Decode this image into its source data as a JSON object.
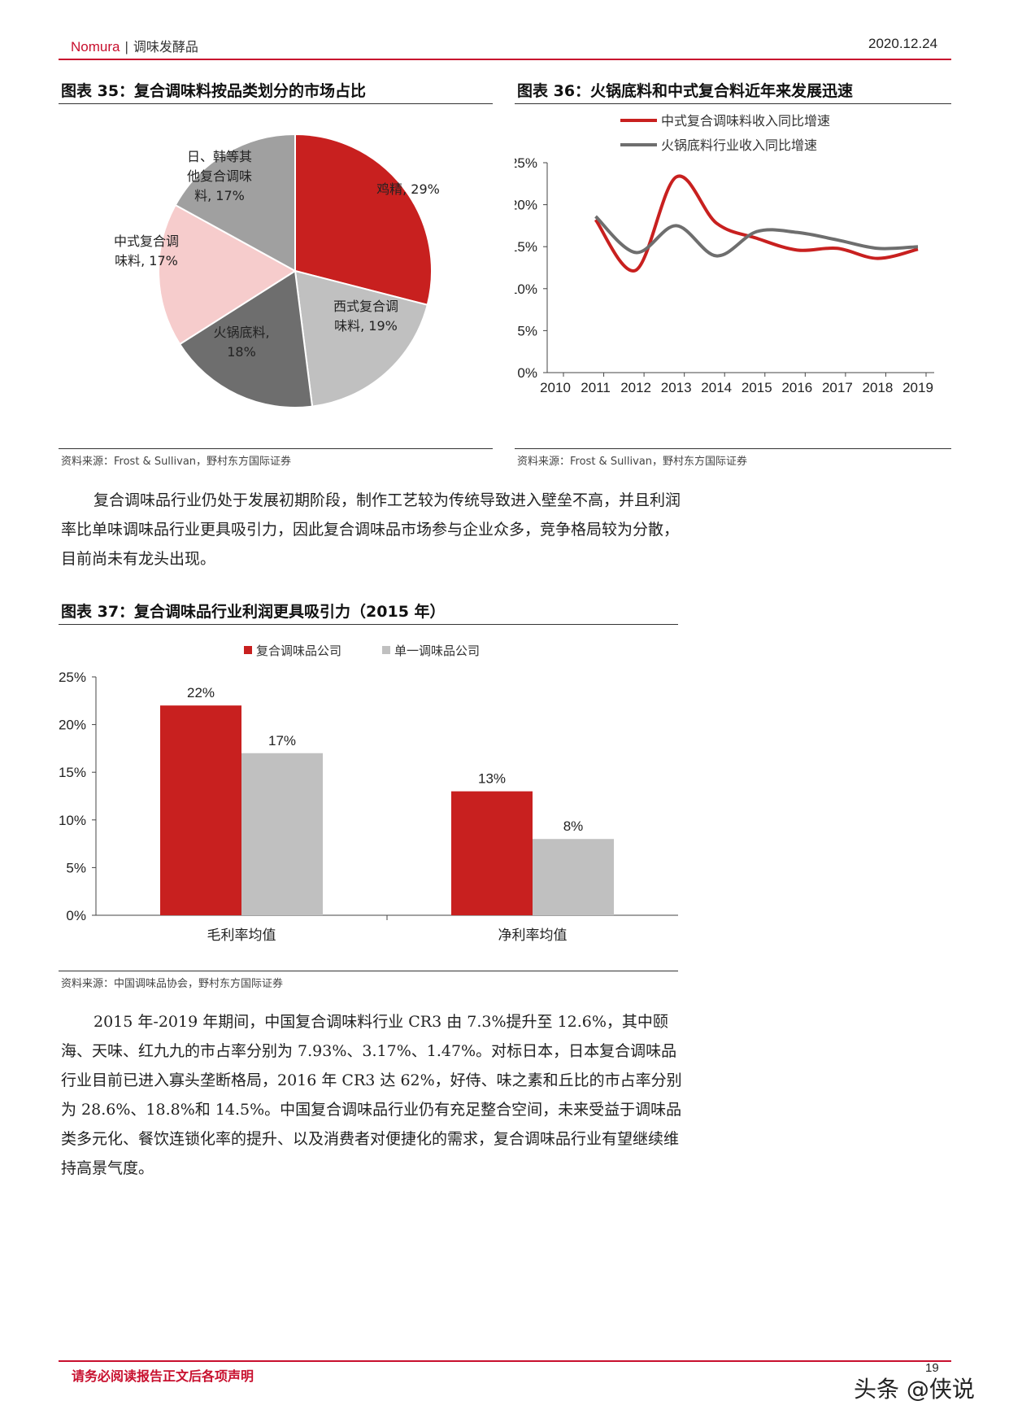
{
  "header": {
    "brand": "Nomura",
    "separator": "|",
    "category": "调味发酵品",
    "date": "2020.12.24"
  },
  "fig35": {
    "title": "图表 35：复合调味料按品类划分的市场占比",
    "source": "资料来源：Frost & Sullivan，野村东方国际证券"
  },
  "fig36": {
    "title": "图表 36：火锅底料和中式复合料近年来发展迅速",
    "source": "资料来源：Frost & Sullivan，野村东方国际证券"
  },
  "fig37": {
    "title": "图表 37：复合调味品行业利润更具吸引力（2015 年）",
    "source": "资料来源：中国调味品协会，野村东方国际证券"
  },
  "paragraph1": "复合调味品行业仍处于发展初期阶段，制作工艺较为传统导致进入壁垒不高，并且利润率比单味调味品行业更具吸引力，因此复合调味品市场参与企业众多，竞争格局较为分散，目前尚未有龙头出现。",
  "paragraph2": "2015 年-2019 年期间，中国复合调味料行业 CR3 由 7.3%提升至 12.6%，其中颐海、天味、红九九的市占率分别为 7.93%、3.17%、1.47%。对标日本，日本复合调味品行业目前已进入寡头垄断格局，2016 年 CR3 达 62%，好侍、味之素和丘比的市占率分别为 28.6%、18.8%和 14.5%。中国复合调味品行业仍有充足整合空间，未来受益于调味品类多元化、餐饮连锁化率的提升、以及消费者对便捷化的需求，复合调味品行业有望继续维持高景气度。",
  "footer": {
    "disclaimer": "请务必阅读报告正文后各项声明",
    "page": "19",
    "watermark": "头条 @侠说"
  },
  "chart_data": [
    {
      "type": "pie",
      "title": "图表 35：复合调味料按品类划分的市场占比",
      "slices": [
        {
          "label": "鸡精, 29%",
          "lines": [
            "鸡精, 29%"
          ],
          "value": 29,
          "color": "#c8201f"
        },
        {
          "label": "西式复合调味料, 19%",
          "lines": [
            "西式复合调",
            "味料, 19%"
          ],
          "value": 19,
          "color": "#c0c0c0"
        },
        {
          "label": "火锅底料, 18%",
          "lines": [
            "火锅底料,",
            "18%"
          ],
          "value": 18,
          "color": "#6e6e6e"
        },
        {
          "label": "中式复合调味料, 17%",
          "lines": [
            "中式复合调",
            "味料, 17%"
          ],
          "value": 17,
          "color": "#f6cccc"
        },
        {
          "label": "日、韩等其他复合调味料, 17%",
          "lines": [
            "日、韩等其",
            "他复合调味",
            "料, 17%"
          ],
          "value": 17,
          "color": "#a0a0a0"
        }
      ]
    },
    {
      "type": "line",
      "title": "图表 36：火锅底料和中式复合料近年来发展迅速",
      "x": [
        2010,
        2011,
        2012,
        2013,
        2014,
        2015,
        2016,
        2017,
        2018,
        2019
      ],
      "ylim": [
        0,
        25
      ],
      "yticks": [
        "0%",
        "5%",
        "10%",
        "15%",
        "20%",
        "25%"
      ],
      "legend_position": "top",
      "series": [
        {
          "name": "中式复合调味料收入同比增速",
          "color": "#c8201f",
          "points": [
            [
              2011,
              18.2
            ],
            [
              2012,
              12.2
            ],
            [
              2013,
              23.3
            ],
            [
              2014,
              17.8
            ],
            [
              2015,
              16.0
            ],
            [
              2016,
              14.6
            ],
            [
              2017,
              14.8
            ],
            [
              2018,
              13.6
            ],
            [
              2019,
              14.7
            ]
          ]
        },
        {
          "name": "火锅底料行业收入同比增速",
          "color": "#6e6e6e",
          "points": [
            [
              2011,
              18.6
            ],
            [
              2012,
              14.3
            ],
            [
              2013,
              17.5
            ],
            [
              2014,
              13.9
            ],
            [
              2015,
              16.8
            ],
            [
              2016,
              16.7
            ],
            [
              2017,
              15.8
            ],
            [
              2018,
              14.8
            ],
            [
              2019,
              15.0
            ]
          ]
        }
      ]
    },
    {
      "type": "bar",
      "title": "图表 37：复合调味品行业利润更具吸引力（2015 年）",
      "categories": [
        "毛利率均值",
        "净利率均值"
      ],
      "ylim": [
        0,
        25
      ],
      "yticks": [
        "0%",
        "5%",
        "10%",
        "15%",
        "20%",
        "25%"
      ],
      "legend_position": "top",
      "series": [
        {
          "name": "复合调味品公司",
          "color": "#c8201f",
          "values": [
            22,
            13
          ],
          "labels": [
            "22%",
            "13%"
          ]
        },
        {
          "name": "单一调味品公司",
          "color": "#c0c0c0",
          "values": [
            17,
            8
          ],
          "labels": [
            "17%",
            "8%"
          ]
        }
      ]
    }
  ]
}
